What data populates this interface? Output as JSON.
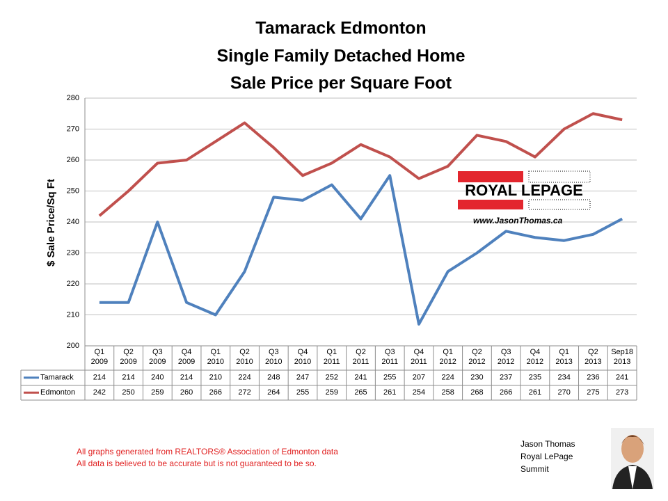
{
  "chart_data": {
    "type": "line",
    "title": [
      "Tamarack Edmonton",
      "Single Family Detached Home",
      "Sale Price per Square Foot"
    ],
    "y_label": "$ Sale Price/Sq Ft",
    "categories": [
      "Q1\n2009",
      "Q2\n2009",
      "Q3\n2009",
      "Q4\n2009",
      "Q1\n2010",
      "Q2\n2010",
      "Q3\n2010",
      "Q4\n2010",
      "Q1\n2011",
      "Q2\n2011",
      "Q3\n2011",
      "Q4\n2011",
      "Q1\n2012",
      "Q2\n2012",
      "Q3\n2012",
      "Q4\n2012",
      "Q1\n2013",
      "Q2\n2013",
      "Sep18\n2013"
    ],
    "series": [
      {
        "name": "Tamarack",
        "color": "#4f81bd",
        "values": [
          214,
          214,
          240,
          214,
          210,
          224,
          248,
          247,
          252,
          241,
          255,
          207,
          224,
          230,
          237,
          235,
          234,
          236,
          241
        ]
      },
      {
        "name": "Edmonton",
        "color": "#c0504d",
        "values": [
          242,
          250,
          259,
          260,
          266,
          272,
          264,
          255,
          259,
          265,
          261,
          254,
          258,
          268,
          266,
          261,
          270,
          275,
          273
        ]
      }
    ],
    "ylim": [
      200,
      280
    ],
    "yticks": [
      200,
      210,
      220,
      230,
      240,
      250,
      260,
      270,
      280
    ],
    "grid": true
  },
  "logo": {
    "brand": "ROYAL LEPAGE",
    "url": "www.JasonThomas.ca"
  },
  "footer": {
    "notes": [
      "All graphs generated from REALTORS® Association of Edmonton data",
      "All data is believed to be accurate but is not guaranteed to be so."
    ]
  },
  "signature": [
    "Jason Thomas",
    "Royal LePage",
    "Summit"
  ]
}
